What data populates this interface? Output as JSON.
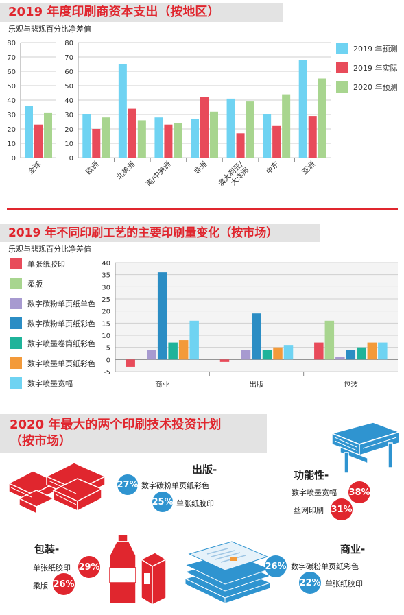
{
  "colors": {
    "red": "#e84b5a",
    "lightblue": "#6fd3f2",
    "green": "#a8d58f",
    "purple": "#a79ad0",
    "darkblue": "#2b8dc4",
    "teal": "#1fb39a",
    "orange": "#f39a3a",
    "accent": "#e0262e",
    "blue_badge": "#2f94d0"
  },
  "section1": {
    "title": "2019 年度印刷商资本支出（按地区）",
    "subtitle": "乐观与悲观百分比净差值"
  },
  "section2": {
    "title": "2019 年不同印刷工艺的主要印刷量变化（按市场）",
    "subtitle": "乐观与悲观百分比净差值"
  },
  "section3": {
    "title_line1": "2020 年最大的两个印刷技术投资计划",
    "title_line2": "（按市场）",
    "markets": {
      "publishing": {
        "name": "出版-",
        "items": [
          {
            "pct": "27%",
            "label": "数字碳粉单页纸彩色"
          },
          {
            "pct": "25%",
            "label": "单张纸胶印"
          }
        ]
      },
      "functional": {
        "name": "功能性-",
        "items": [
          {
            "pct": "38%",
            "label": "数字喷墨宽幅"
          },
          {
            "pct": "31%",
            "label": "丝网印刷"
          }
        ]
      },
      "packaging": {
        "name": "包装-",
        "items": [
          {
            "pct": "29%",
            "label": "单张纸胶印"
          },
          {
            "pct": "26%",
            "label": "柔版"
          }
        ]
      },
      "commercial": {
        "name": "商业-",
        "items": [
          {
            "pct": "26%",
            "label": "数字碳粉单页纸彩色"
          },
          {
            "pct": "22%",
            "label": "单张纸胶印"
          }
        ]
      }
    }
  },
  "chart_data": [
    {
      "type": "bar",
      "categories": [
        "全球"
      ],
      "yticks": [
        0,
        10,
        20,
        30,
        40,
        50,
        60,
        70,
        80
      ],
      "ylim": [
        0,
        80
      ],
      "series": [
        {
          "name": "2019 年预测",
          "color": "#6fd3f2",
          "values": [
            36
          ]
        },
        {
          "name": "2019 年实际",
          "color": "#e84b5a",
          "values": [
            23
          ]
        },
        {
          "name": "2020 年预测",
          "color": "#a8d58f",
          "values": [
            31
          ]
        }
      ]
    },
    {
      "type": "bar",
      "categories": [
        "欧洲",
        "北美洲",
        "南/中美洲",
        "非洲",
        "澳大利亚/大洋洲",
        "中东",
        "亚洲"
      ],
      "category_lines": [
        [
          "欧洲"
        ],
        [
          "北美洲"
        ],
        [
          "南/中美洲"
        ],
        [
          "非洲"
        ],
        [
          "澳大利亚/",
          "大洋洲"
        ],
        [
          "中东"
        ],
        [
          "亚洲"
        ]
      ],
      "yticks": [
        0,
        10,
        20,
        30,
        40,
        50,
        60,
        70,
        80
      ],
      "ylim": [
        0,
        80
      ],
      "series": [
        {
          "name": "2019 年预测",
          "color": "#6fd3f2",
          "values": [
            30,
            65,
            28,
            27,
            41,
            30,
            68
          ]
        },
        {
          "name": "2019 年实际",
          "color": "#e84b5a",
          "values": [
            20,
            34,
            23,
            42,
            17,
            22,
            29
          ]
        },
        {
          "name": "2020 年预测",
          "color": "#a8d58f",
          "values": [
            28,
            26,
            24,
            32,
            39,
            44,
            55
          ]
        }
      ],
      "legend": [
        "2019 年预测",
        "2019 年实际",
        "2020 年预测"
      ]
    },
    {
      "type": "bar",
      "categories": [
        "商业",
        "出版",
        "包装"
      ],
      "yticks": [
        -5,
        0,
        5,
        10,
        15,
        20,
        25,
        30,
        35,
        40
      ],
      "ylim": [
        -5,
        40
      ],
      "series": [
        {
          "name": "单张纸胶印",
          "color": "#e84b5a",
          "values": [
            -3,
            -1,
            7
          ]
        },
        {
          "name": "柔版",
          "color": "#a8d58f",
          "values": [
            0,
            0,
            16
          ]
        },
        {
          "name": "数字碳粉单页纸单色",
          "color": "#a79ad0",
          "values": [
            4,
            4,
            1
          ]
        },
        {
          "name": "数字碳粉单页纸彩色",
          "color": "#2b8dc4",
          "values": [
            36,
            19,
            4
          ]
        },
        {
          "name": "数字喷墨卷筒纸彩色",
          "color": "#1fb39a",
          "values": [
            7,
            4,
            5
          ]
        },
        {
          "name": "数字喷墨单页纸彩色",
          "color": "#f39a3a",
          "values": [
            8,
            5,
            7
          ]
        },
        {
          "name": "数字喷墨宽幅",
          "color": "#6fd3f2",
          "values": [
            16,
            6,
            7
          ]
        }
      ]
    }
  ]
}
